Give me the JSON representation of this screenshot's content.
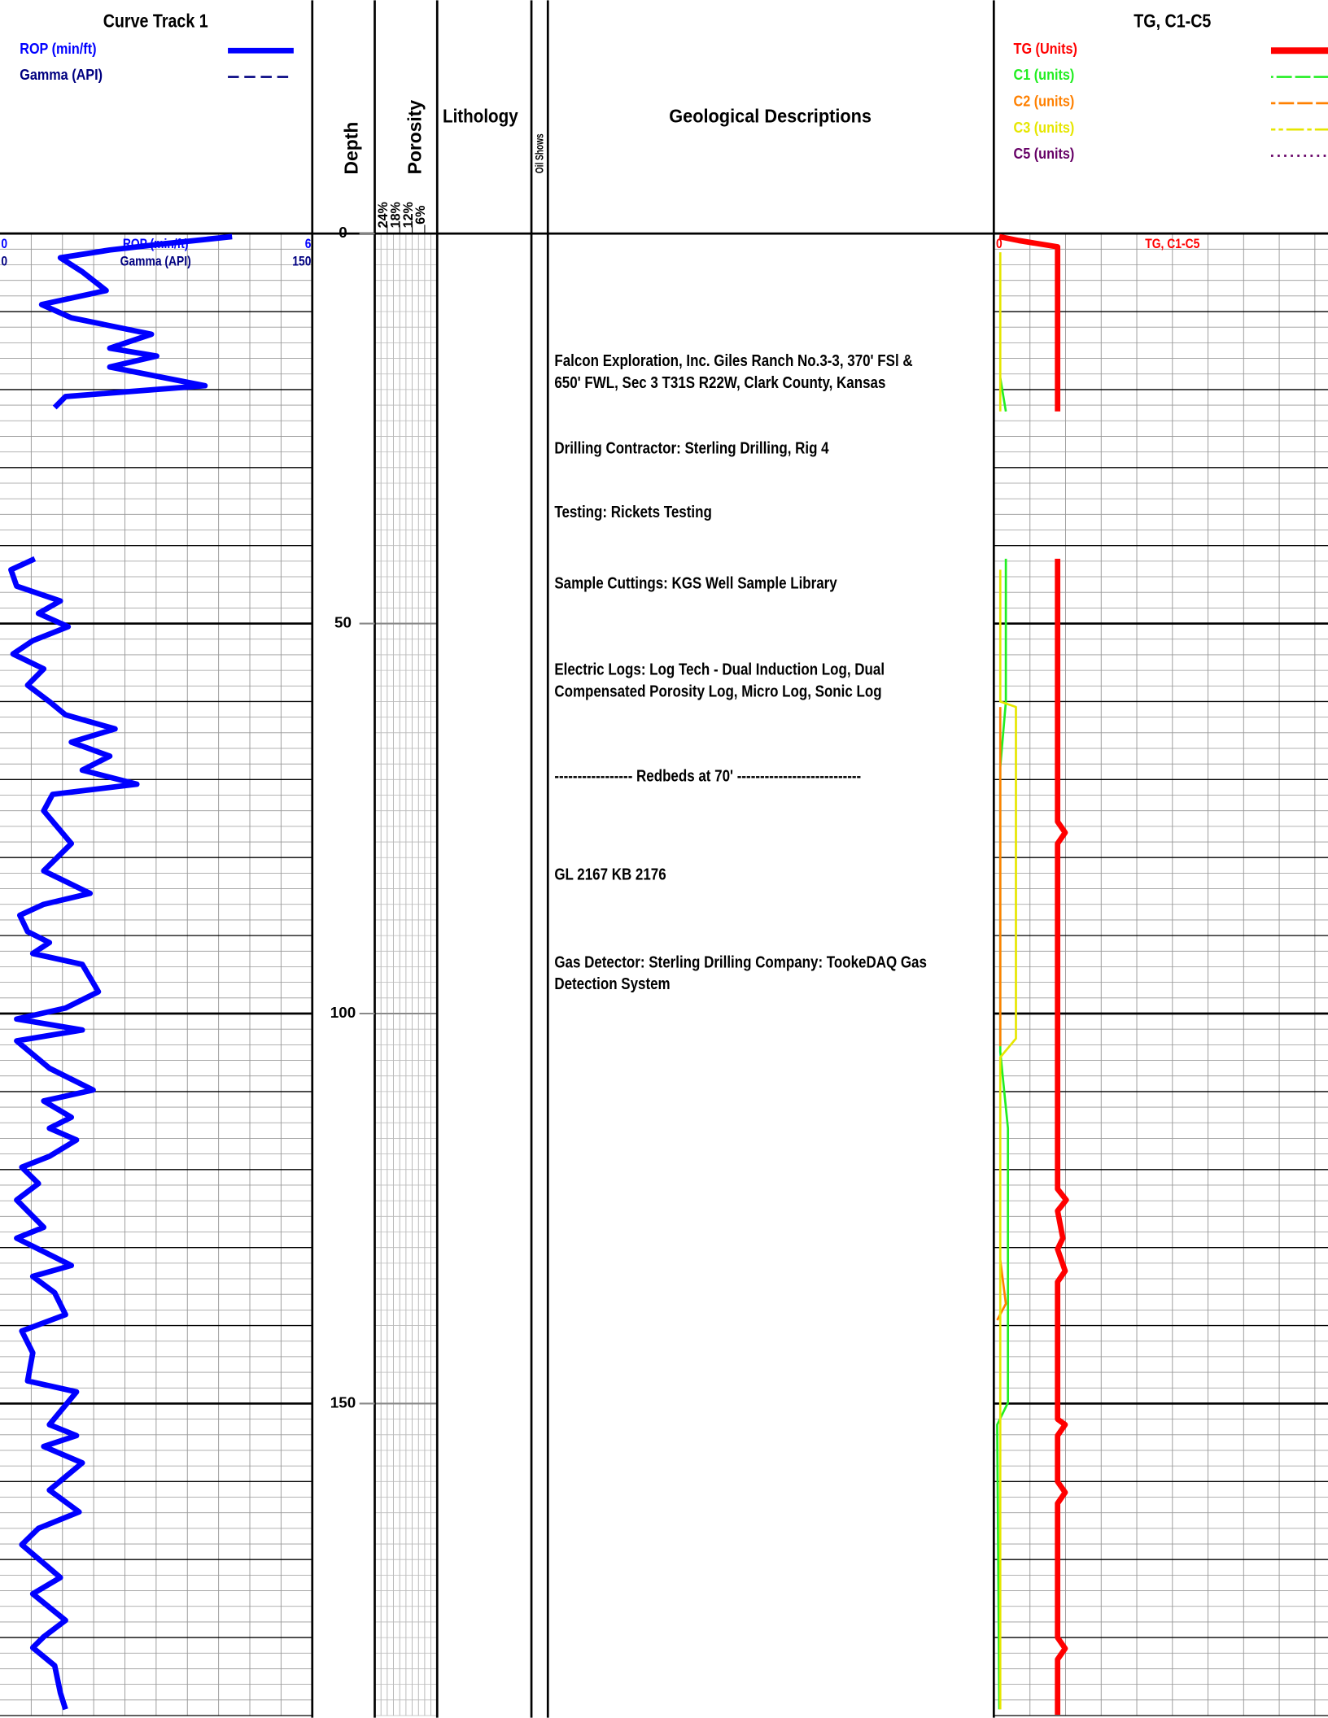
{
  "chart_data": {
    "type": "well-log",
    "depth_label": "Depth",
    "depthlim": [
      0,
      190
    ],
    "depthticks": [
      0,
      50,
      100,
      150
    ],
    "track1": {
      "title": "Curve Track 1",
      "series": [
        {
          "name": "ROP (min/ft)",
          "color": "#0000ff",
          "xlim": [
            0,
            6
          ],
          "depth": [
            0.4,
            1.3,
            2.1,
            3.1,
            4.9,
            7.3,
            9.1,
            10.8,
            12.9,
            14.7,
            15.7,
            17.1,
            19.5,
            20.9,
            22.3,
            null,
            41.7,
            43.1,
            45.2,
            47.1,
            48.7,
            50.4,
            52.2,
            53.9,
            55.8,
            57.9,
            60.0,
            61.7,
            63.5,
            65.2,
            67.0,
            68.8,
            70.6,
            71.9,
            74.0,
            78.2,
            81.7,
            84.6,
            86.0,
            87.4,
            89.5,
            90.9,
            92.3,
            93.7,
            97.2,
            99.3,
            100.7,
            102.1,
            103.5,
            107.0,
            109.8,
            111.2,
            113.3,
            114.7,
            116.2,
            118.3,
            119.7,
            121.8,
            123.9,
            127.4,
            128.8,
            132.3,
            133.7,
            135.8,
            138.6,
            140.7,
            143.5,
            147.1,
            148.5,
            152.7,
            154.1,
            155.5,
            157.6,
            161.1,
            163.9,
            166.0,
            168.1,
            172.3,
            174.4,
            177.8,
            179.9,
            181.3,
            183.6,
            187.1,
            189.2
          ],
          "values": [
            4.46,
            3.16,
            2.11,
            1.16,
            1.58,
            2.04,
            0.8,
            1.37,
            2.91,
            2.11,
            3.01,
            2.11,
            3.94,
            1.26,
            1.05,
            null,
            0.67,
            0.21,
            0.32,
            1.16,
            0.74,
            1.31,
            0.63,
            0.25,
            0.84,
            0.53,
            0.95,
            1.26,
            2.21,
            1.37,
            2.11,
            1.58,
            2.63,
            1.01,
            0.84,
            1.37,
            0.84,
            1.73,
            0.84,
            0.38,
            0.53,
            0.95,
            0.63,
            1.58,
            1.89,
            1.26,
            0.32,
            1.58,
            0.32,
            0.95,
            1.79,
            0.84,
            1.37,
            0.95,
            1.47,
            0.95,
            0.42,
            0.74,
            0.32,
            0.84,
            0.32,
            1.37,
            0.63,
            1.05,
            1.26,
            0.42,
            0.63,
            0.53,
            1.47,
            0.95,
            1.47,
            0.84,
            1.58,
            0.95,
            1.52,
            0.74,
            0.42,
            1.16,
            0.63,
            1.26,
            0.84,
            0.63,
            1.05,
            1.16,
            1.26
          ]
        },
        {
          "name": "Gamma (API)",
          "color": "#000080",
          "xlim": [
            0,
            150
          ]
        }
      ]
    },
    "porosity": {
      "label": "Porosity",
      "lim": [
        30,
        0
      ],
      "ticks": [
        {
          "value": 24,
          "label": "24%"
        },
        {
          "value": 18,
          "label": "18%"
        },
        {
          "value": 12,
          "label": "12%"
        },
        {
          "value": 6,
          "label": "6%"
        }
      ]
    },
    "lithology": "Lithology",
    "oil_shows": "Oil Shows",
    "descriptions": {
      "title": "Geological Descriptions",
      "items": [
        [
          "Falcon Exploration, Inc. Giles Ranch No.3-3, 370' FSl &",
          "650' FWL, Sec 3 T31S R22W, Clark County, Kansas"
        ],
        [
          "Drilling Contractor:  Sterling Drilling, Rig 4"
        ],
        [
          "Testing:  Rickets Testing"
        ],
        [
          "Sample Cuttings:  KGS Well Sample Library"
        ],
        [
          "Electric Logs:  Log Tech - Dual Induction Log, Dual",
          "Compensated Porosity Log, Micro Log, Sonic Log"
        ],
        [
          "----------------- Redbeds at 70' ---------------------------"
        ],
        [
          "GL 2167  KB 2176"
        ],
        [
          "Gas Detector: Sterling Drilling Company: TookeDAQ Gas",
          "Detection System"
        ]
      ]
    },
    "gas": {
      "title": "TG, C1-C5",
      "xlim": [
        0,
        100
      ],
      "series": [
        {
          "name": "TG (Units)",
          "color": "#ff0000",
          "depth": [
            0.4,
            0.9,
            1.7,
            22.8,
            null,
            41.7,
            75.4,
            76.8,
            78.2,
            122.5,
            123.9,
            125.3,
            128.8,
            130.2,
            133.0,
            134.4,
            152.0,
            152.7,
            154.1,
            160.0,
            161.4,
            162.8,
            180.0,
            181.4,
            182.8,
            189.9
          ],
          "values": [
            1.3,
            7.2,
            18.8,
            18.8,
            null,
            18.8,
            18.8,
            21.1,
            18.8,
            18.8,
            21.4,
            18.8,
            20.4,
            18.8,
            21.1,
            18.8,
            18.8,
            21.1,
            18.8,
            18.8,
            21.1,
            18.8,
            18.8,
            21.1,
            18.8,
            18.8
          ]
        },
        {
          "name": "C1 (units)",
          "color": "#22ee22",
          "depth": [
            18.5,
            22.8,
            null,
            41.7,
            60.0,
            68.4,
            104.9,
            114.7,
            149.9,
            152.7,
            189.2
          ],
          "values": [
            1.6,
            3.3,
            null,
            3.3,
            3.3,
            1.6,
            1.6,
            3.9,
            3.9,
            0.7,
            1.3
          ]
        },
        {
          "name": "C2 (units)",
          "color": "#ff8000",
          "depth": [
            60.7,
            104.2,
            null,
            131.6,
            137.2,
            139.3
          ],
          "values": [
            1.6,
            1.6,
            null,
            1.6,
            3.3,
            0.7
          ]
        },
        {
          "name": "C3 (units)",
          "color": "#e6e600",
          "depth": [
            2.4,
            22.8,
            null,
            43.1,
            60.0,
            60.7,
            103.2,
            105.6,
            189.2
          ],
          "values": [
            1.6,
            1.6,
            null,
            1.6,
            1.6,
            6.3,
            6.3,
            1.6,
            1.6
          ]
        },
        {
          "name": "C5 (units)",
          "color": "#660066"
        }
      ]
    }
  }
}
